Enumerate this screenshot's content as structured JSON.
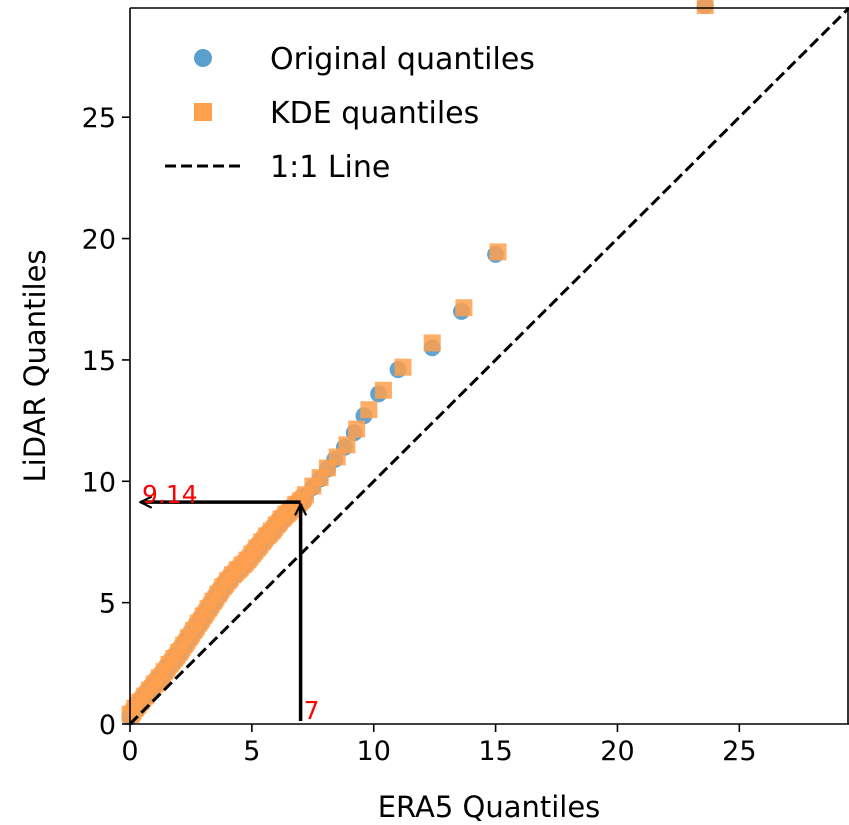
{
  "chart_data": {
    "type": "scatter",
    "xlabel": "ERA5 Quantiles",
    "ylabel": "LiDAR Quantiles",
    "xlim": [
      0,
      29.5
    ],
    "ylim": [
      0,
      29.5
    ],
    "x_ticks": [
      "0",
      "5",
      "10",
      "15",
      "20",
      "25"
    ],
    "y_ticks": [
      "0",
      "5",
      "10",
      "15",
      "20",
      "25"
    ],
    "x_tick_values": [
      0,
      5,
      10,
      15,
      20,
      25
    ],
    "y_tick_values": [
      0,
      5,
      10,
      15,
      20,
      25
    ],
    "grid": false,
    "legend_position": "top-left",
    "series": [
      {
        "name": "Original quantiles",
        "marker": "circle",
        "color": "#5b9fcc",
        "x": [
          0.0,
          0.2,
          0.4,
          0.6,
          0.8,
          1.0,
          1.2,
          1.4,
          1.6,
          1.8,
          2.0,
          2.2,
          2.4,
          2.6,
          2.8,
          3.0,
          3.2,
          3.4,
          3.6,
          3.8,
          4.0,
          4.2,
          4.4,
          4.6,
          4.8,
          5.0,
          5.2,
          5.4,
          5.6,
          5.8,
          6.0,
          6.2,
          6.4,
          6.6,
          6.8,
          7.0,
          7.2,
          7.5,
          7.8,
          8.1,
          8.4,
          8.8,
          9.2,
          9.6,
          10.2,
          11.0,
          12.4,
          13.6,
          15.0,
          23.6
        ],
        "y": [
          0.3,
          0.6,
          0.85,
          1.1,
          1.35,
          1.6,
          1.85,
          2.1,
          2.4,
          2.65,
          2.9,
          3.2,
          3.5,
          3.8,
          4.1,
          4.4,
          4.7,
          5.0,
          5.3,
          5.6,
          5.85,
          6.1,
          6.3,
          6.5,
          6.7,
          6.95,
          7.2,
          7.45,
          7.7,
          7.9,
          8.15,
          8.4,
          8.6,
          8.8,
          9.0,
          9.14,
          9.4,
          9.75,
          10.1,
          10.5,
          10.9,
          11.4,
          12.0,
          12.7,
          13.6,
          14.6,
          15.5,
          17.0,
          19.35,
          29.6
        ]
      },
      {
        "name": "KDE quantiles",
        "marker": "square",
        "color": "#ffa04d",
        "x": [
          0.0,
          0.2,
          0.4,
          0.6,
          0.8,
          1.0,
          1.2,
          1.4,
          1.6,
          1.8,
          2.0,
          2.2,
          2.4,
          2.6,
          2.8,
          3.0,
          3.2,
          3.4,
          3.6,
          3.8,
          4.0,
          4.2,
          4.4,
          4.6,
          4.8,
          5.0,
          5.2,
          5.4,
          5.6,
          5.8,
          6.0,
          6.2,
          6.4,
          6.6,
          6.8,
          7.0,
          7.2,
          7.5,
          7.8,
          8.1,
          8.5,
          8.9,
          9.3,
          9.8,
          10.4,
          11.2,
          12.4,
          13.7,
          15.1,
          23.6
        ],
        "y": [
          0.4,
          0.65,
          0.9,
          1.15,
          1.4,
          1.65,
          1.9,
          2.15,
          2.45,
          2.7,
          2.95,
          3.25,
          3.55,
          3.85,
          4.15,
          4.45,
          4.75,
          5.05,
          5.35,
          5.65,
          5.9,
          6.15,
          6.35,
          6.55,
          6.75,
          7.0,
          7.25,
          7.5,
          7.75,
          7.95,
          8.2,
          8.45,
          8.65,
          8.85,
          9.05,
          9.2,
          9.45,
          9.8,
          10.15,
          10.55,
          11.0,
          11.5,
          12.15,
          12.95,
          13.75,
          14.7,
          15.7,
          17.15,
          19.45,
          29.6
        ]
      },
      {
        "name": "1:1 Line",
        "line": "dashed",
        "color": "#000000",
        "x": [
          0,
          29.5
        ],
        "y": [
          0,
          29.5
        ]
      }
    ],
    "annotations": [
      {
        "label": "9.14",
        "from": [
          7,
          9.14
        ],
        "to": [
          0.35,
          9.14
        ],
        "color": "#ff0000"
      },
      {
        "label": "7",
        "from": [
          7,
          0
        ],
        "to": [
          7,
          9.14
        ],
        "color": "#ff0000"
      }
    ]
  }
}
